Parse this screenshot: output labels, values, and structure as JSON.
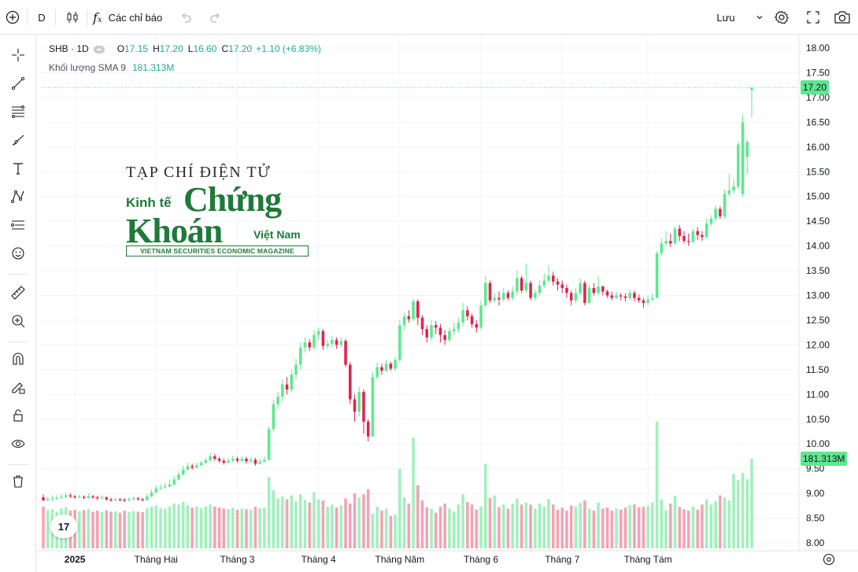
{
  "toolbar": {
    "interval": "D",
    "indicators_label": "Các chỉ báo",
    "save_label": "Lưu"
  },
  "sidebar_tools": [
    "crosshair-icon",
    "trend-line-icon",
    "fib-icon",
    "brush-icon",
    "text-icon",
    "pattern-icon",
    "forecast-icon",
    "emoji-icon",
    "ruler-icon",
    "zoom-in-icon",
    "magnet-icon",
    "lock-drawings-icon",
    "unlock-icon",
    "eye-icon",
    "trash-icon"
  ],
  "legend": {
    "symbol": "SHB · 1D",
    "o_label": "O",
    "o": "17.15",
    "h_label": "H",
    "h": "17.20",
    "l_label": "L",
    "l": "16.60",
    "c_label": "C",
    "c": "17.20",
    "change": "+1.10 (+6.83%)",
    "volume_label": "Khối lượng SMA 9",
    "volume_value": "181.313M"
  },
  "last_price_tag": "17.20",
  "volume_tag": "181.313M",
  "watermark": {
    "line1": "TẠP CHÍ ĐIỆN TỬ",
    "kinh_te": "Kinh tế",
    "chung": "Chứng",
    "khoan": "Khoán",
    "viet_nam": "Việt Nam",
    "tagline": "VIETNAM SECURITIES ECONOMIC MAGAZINE"
  },
  "tv_logo": "17",
  "colors": {
    "up": "#5ee88f",
    "down": "#e0234e",
    "up_volume": "#a2f0bd",
    "down_volume": "#f3a3b4",
    "grid": "#f0f3fa"
  },
  "chart_data": {
    "type": "candlestick",
    "ylim": [
      8.0,
      18.0
    ],
    "y_ticks": [
      "18.00",
      "17.50",
      "17.00",
      "16.50",
      "16.00",
      "15.50",
      "15.00",
      "14.50",
      "14.00",
      "13.50",
      "13.00",
      "12.50",
      "12.00",
      "11.50",
      "11.00",
      "10.50",
      "10.00",
      "9.50",
      "9.00",
      "8.50",
      "8.00"
    ],
    "x_labels": [
      {
        "label": "2025",
        "index": 7,
        "bold": true
      },
      {
        "label": "Tháng Hai",
        "index": 25
      },
      {
        "label": "Tháng 3",
        "index": 43
      },
      {
        "label": "Tháng 4",
        "index": 61
      },
      {
        "label": "Tháng Năm",
        "index": 79
      },
      {
        "label": "Tháng 6",
        "index": 97
      },
      {
        "label": "Tháng 7",
        "index": 115
      },
      {
        "label": "Tháng Tám",
        "index": 134
      }
    ],
    "last_price": 17.2,
    "candles": [
      [
        8.92,
        8.86,
        8.98,
        8.85,
        8.82
      ],
      [
        8.86,
        8.88,
        8.93,
        8.84,
        8.75
      ],
      [
        8.88,
        8.9,
        8.96,
        8.85,
        8.77
      ],
      [
        8.9,
        8.91,
        8.97,
        8.87,
        8.72
      ],
      [
        8.91,
        8.93,
        8.99,
        8.88,
        8.79
      ],
      [
        8.93,
        8.96,
        9.02,
        8.9,
        8.81
      ],
      [
        8.96,
        8.94,
        9.0,
        8.91,
        8.74
      ],
      [
        8.94,
        8.92,
        8.97,
        8.89,
        8.76
      ],
      [
        8.92,
        8.93,
        8.98,
        8.9,
        8.73
      ],
      [
        8.93,
        8.91,
        8.96,
        8.88,
        8.75
      ],
      [
        8.91,
        8.94,
        9.0,
        8.89,
        8.77
      ],
      [
        8.94,
        8.92,
        8.97,
        8.89,
        8.72
      ],
      [
        8.92,
        8.9,
        8.95,
        8.86,
        8.74
      ],
      [
        8.9,
        8.92,
        8.96,
        8.88,
        8.71
      ],
      [
        8.92,
        8.88,
        8.94,
        8.85,
        8.75
      ],
      [
        8.88,
        8.86,
        8.91,
        8.83,
        8.72
      ],
      [
        8.86,
        8.88,
        8.92,
        8.84,
        8.73
      ],
      [
        8.88,
        8.87,
        8.91,
        8.84,
        8.7
      ],
      [
        8.87,
        8.86,
        8.9,
        8.83,
        8.74
      ],
      [
        8.86,
        8.88,
        8.92,
        8.84,
        8.71
      ],
      [
        8.88,
        8.9,
        8.94,
        8.86,
        8.73
      ],
      [
        8.9,
        8.88,
        8.93,
        8.85,
        8.72
      ],
      [
        8.88,
        8.86,
        8.91,
        8.84,
        8.71
      ],
      [
        8.86,
        8.94,
        8.99,
        8.85,
        8.79
      ],
      [
        8.94,
        9.02,
        9.08,
        8.92,
        8.82
      ],
      [
        9.02,
        9.1,
        9.16,
        9.0,
        8.84
      ],
      [
        9.1,
        9.12,
        9.18,
        9.07,
        8.79
      ],
      [
        9.12,
        9.14,
        9.22,
        9.1,
        8.78
      ],
      [
        9.14,
        9.18,
        9.28,
        9.12,
        8.82
      ],
      [
        9.18,
        9.28,
        9.36,
        9.16,
        8.88
      ],
      [
        9.28,
        9.38,
        9.45,
        9.26,
        8.86
      ],
      [
        9.38,
        9.48,
        9.56,
        9.36,
        8.91
      ],
      [
        9.48,
        9.55,
        9.62,
        9.46,
        8.84
      ],
      [
        9.55,
        9.52,
        9.6,
        9.48,
        8.8
      ],
      [
        9.52,
        9.57,
        9.62,
        9.5,
        8.82
      ],
      [
        9.57,
        9.62,
        9.66,
        9.55,
        8.79
      ],
      [
        9.62,
        9.67,
        9.72,
        9.6,
        8.82
      ],
      [
        9.67,
        9.75,
        9.82,
        9.64,
        8.86
      ],
      [
        9.75,
        9.7,
        9.8,
        9.66,
        8.82
      ],
      [
        9.7,
        9.66,
        9.74,
        9.62,
        8.8
      ],
      [
        9.66,
        9.62,
        9.7,
        9.58,
        8.78
      ],
      [
        9.62,
        9.66,
        9.72,
        9.6,
        8.77
      ],
      [
        9.66,
        9.7,
        9.76,
        9.63,
        8.8
      ],
      [
        9.7,
        9.66,
        9.74,
        9.62,
        8.76
      ],
      [
        9.66,
        9.7,
        9.75,
        9.63,
        8.78
      ],
      [
        9.7,
        9.65,
        9.74,
        9.6,
        8.77
      ],
      [
        9.65,
        9.68,
        9.74,
        9.62,
        8.76
      ],
      [
        9.68,
        9.6,
        9.72,
        9.56,
        8.82
      ],
      [
        9.6,
        9.64,
        9.7,
        9.58,
        8.79
      ],
      [
        9.64,
        9.68,
        9.74,
        9.62,
        8.8
      ],
      [
        9.68,
        10.3,
        10.35,
        9.66,
        9.4
      ],
      [
        10.3,
        10.8,
        10.9,
        10.25,
        9.14
      ],
      [
        10.8,
        10.95,
        11.05,
        10.7,
        8.98
      ],
      [
        10.95,
        11.2,
        11.3,
        10.85,
        9.02
      ],
      [
        11.2,
        11.1,
        11.35,
        11.0,
        8.96
      ],
      [
        11.1,
        11.4,
        11.5,
        11.05,
        9.04
      ],
      [
        11.4,
        11.6,
        11.72,
        11.3,
        8.92
      ],
      [
        11.6,
        11.95,
        12.05,
        11.5,
        9.06
      ],
      [
        11.95,
        12.05,
        12.15,
        11.85,
        8.95
      ],
      [
        12.05,
        11.95,
        12.12,
        11.88,
        8.9
      ],
      [
        11.95,
        12.2,
        12.3,
        11.9,
        9.1
      ],
      [
        12.2,
        12.28,
        12.35,
        12.1,
        8.96
      ],
      [
        12.28,
        11.98,
        12.32,
        11.9,
        8.94
      ],
      [
        11.98,
        12.02,
        12.1,
        11.92,
        8.82
      ],
      [
        12.02,
        12.1,
        12.18,
        11.95,
        8.86
      ],
      [
        12.1,
        12.0,
        12.15,
        11.92,
        8.8
      ],
      [
        12.0,
        12.08,
        12.15,
        11.95,
        8.84
      ],
      [
        12.08,
        11.6,
        12.12,
        11.55,
        8.98
      ],
      [
        11.6,
        10.9,
        11.65,
        10.8,
        8.88
      ],
      [
        10.9,
        10.65,
        11.0,
        10.45,
        9.08
      ],
      [
        10.65,
        11.05,
        11.15,
        10.55,
        9.0
      ],
      [
        11.05,
        10.45,
        11.1,
        10.2,
        9.06
      ],
      [
        10.45,
        10.15,
        10.5,
        10.05,
        9.16
      ],
      [
        10.15,
        11.35,
        11.45,
        10.2,
        8.68
      ],
      [
        11.35,
        11.55,
        11.65,
        11.3,
        8.82
      ],
      [
        11.55,
        11.48,
        11.62,
        11.4,
        8.74
      ],
      [
        11.48,
        11.62,
        11.7,
        11.45,
        8.78
      ],
      [
        11.62,
        11.52,
        11.66,
        11.48,
        8.64
      ],
      [
        11.52,
        11.7,
        11.76,
        11.48,
        8.66
      ],
      [
        11.7,
        12.4,
        12.5,
        11.65,
        9.56
      ],
      [
        12.4,
        12.58,
        12.65,
        12.3,
        9.0
      ],
      [
        12.58,
        12.52,
        12.7,
        12.45,
        8.88
      ],
      [
        12.52,
        12.88,
        12.93,
        12.48,
        10.17
      ],
      [
        12.88,
        12.55,
        12.92,
        12.4,
        9.24
      ],
      [
        12.55,
        12.32,
        12.6,
        12.2,
        8.94
      ],
      [
        12.32,
        12.15,
        12.4,
        12.05,
        8.81
      ],
      [
        12.15,
        12.4,
        12.5,
        12.08,
        8.78
      ],
      [
        12.4,
        12.35,
        12.48,
        12.22,
        8.7
      ],
      [
        12.35,
        12.2,
        12.42,
        12.05,
        8.82
      ],
      [
        12.2,
        12.1,
        12.3,
        12.0,
        8.88
      ],
      [
        12.1,
        12.28,
        12.35,
        12.05,
        8.78
      ],
      [
        12.28,
        12.32,
        12.45,
        12.2,
        8.72
      ],
      [
        12.32,
        12.45,
        12.55,
        12.25,
        8.86
      ],
      [
        12.45,
        12.7,
        12.85,
        12.38,
        9.06
      ],
      [
        12.7,
        12.58,
        12.78,
        12.5,
        8.91
      ],
      [
        12.58,
        12.42,
        12.64,
        12.35,
        8.86
      ],
      [
        12.42,
        12.35,
        12.5,
        12.25,
        8.76
      ],
      [
        12.35,
        12.8,
        12.9,
        12.3,
        8.82
      ],
      [
        12.8,
        13.25,
        13.4,
        12.75,
        9.66
      ],
      [
        13.25,
        12.9,
        13.3,
        12.85,
        8.99
      ],
      [
        12.9,
        12.95,
        13.05,
        12.85,
        9.04
      ],
      [
        12.95,
        12.92,
        13.08,
        12.8,
        8.81
      ],
      [
        12.92,
        13.05,
        13.15,
        12.88,
        8.86
      ],
      [
        13.05,
        12.95,
        13.1,
        12.9,
        8.78
      ],
      [
        12.95,
        13.08,
        13.18,
        12.9,
        8.88
      ],
      [
        13.08,
        13.35,
        13.5,
        13.0,
        8.98
      ],
      [
        13.35,
        13.1,
        13.4,
        13.05,
        8.86
      ],
      [
        13.1,
        13.25,
        13.65,
        13.05,
        8.9
      ],
      [
        13.25,
        12.95,
        13.3,
        12.9,
        8.86
      ],
      [
        12.95,
        13.05,
        13.12,
        12.9,
        8.78
      ],
      [
        13.05,
        13.2,
        13.3,
        13.0,
        8.88
      ],
      [
        13.2,
        13.3,
        13.45,
        13.15,
        8.82
      ],
      [
        13.3,
        13.4,
        13.6,
        13.25,
        8.97
      ],
      [
        13.4,
        13.28,
        13.48,
        13.2,
        8.86
      ],
      [
        13.28,
        13.22,
        13.35,
        13.1,
        8.76
      ],
      [
        13.22,
        13.15,
        13.3,
        13.05,
        8.8
      ],
      [
        13.15,
        13.05,
        13.22,
        12.95,
        8.74
      ],
      [
        13.05,
        12.9,
        13.1,
        12.8,
        8.84
      ],
      [
        12.9,
        13.05,
        13.15,
        12.85,
        8.82
      ],
      [
        13.05,
        13.25,
        13.35,
        13.0,
        8.89
      ],
      [
        13.25,
        12.85,
        13.3,
        12.8,
        8.94
      ],
      [
        12.85,
        13.15,
        13.22,
        12.82,
        8.78
      ],
      [
        13.15,
        13.05,
        13.25,
        13.0,
        8.74
      ],
      [
        13.05,
        13.18,
        13.38,
        13.0,
        8.9
      ],
      [
        13.18,
        13.08,
        13.2,
        13.0,
        8.78
      ],
      [
        13.08,
        13.0,
        13.12,
        12.95,
        8.8
      ],
      [
        13.0,
        12.95,
        13.08,
        12.9,
        8.74
      ],
      [
        12.95,
        13.0,
        13.08,
        12.92,
        8.78
      ],
      [
        13.0,
        12.98,
        13.05,
        12.9,
        8.76
      ],
      [
        12.98,
        12.95,
        13.04,
        12.88,
        8.8
      ],
      [
        12.95,
        13.05,
        13.12,
        12.9,
        8.84
      ],
      [
        13.05,
        12.95,
        13.1,
        12.88,
        8.86
      ],
      [
        12.95,
        12.9,
        13.02,
        12.85,
        8.81
      ],
      [
        12.9,
        12.85,
        12.95,
        12.75,
        8.82
      ],
      [
        12.85,
        12.92,
        13.0,
        12.8,
        8.84
      ],
      [
        12.92,
        12.95,
        13.05,
        12.88,
        8.9
      ],
      [
        12.95,
        13.85,
        13.9,
        12.95,
        10.49
      ],
      [
        13.85,
        14.05,
        14.15,
        13.8,
        8.96
      ],
      [
        14.05,
        14.1,
        14.3,
        14.0,
        8.75
      ],
      [
        14.1,
        14.05,
        14.25,
        13.98,
        8.88
      ],
      [
        14.05,
        14.35,
        14.4,
        14.02,
        9.03
      ],
      [
        14.35,
        14.2,
        14.42,
        14.1,
        8.81
      ],
      [
        14.2,
        14.1,
        14.3,
        14.05,
        8.77
      ],
      [
        14.1,
        14.08,
        14.25,
        14.0,
        8.74
      ],
      [
        14.08,
        14.3,
        14.35,
        14.05,
        8.82
      ],
      [
        14.3,
        14.22,
        14.38,
        14.12,
        8.76
      ],
      [
        14.22,
        14.18,
        14.3,
        14.1,
        8.86
      ],
      [
        14.18,
        14.45,
        14.55,
        14.15,
        8.96
      ],
      [
        14.45,
        14.55,
        14.62,
        14.4,
        8.86
      ],
      [
        14.55,
        14.75,
        14.82,
        14.5,
        8.93
      ],
      [
        14.75,
        14.6,
        14.8,
        14.55,
        9.04
      ],
      [
        14.6,
        15.05,
        15.15,
        14.55,
        9.0
      ],
      [
        15.05,
        15.12,
        15.45,
        15.0,
        8.94
      ],
      [
        15.12,
        15.2,
        15.35,
        15.05,
        9.46
      ],
      [
        15.2,
        16.05,
        16.1,
        15.15,
        9.34
      ],
      [
        15.05,
        16.5,
        16.65,
        15.0,
        9.48
      ],
      [
        15.8,
        16.1,
        16.15,
        15.45,
        9.36
      ],
      [
        17.15,
        17.2,
        17.2,
        16.6,
        9.76
      ]
    ]
  }
}
